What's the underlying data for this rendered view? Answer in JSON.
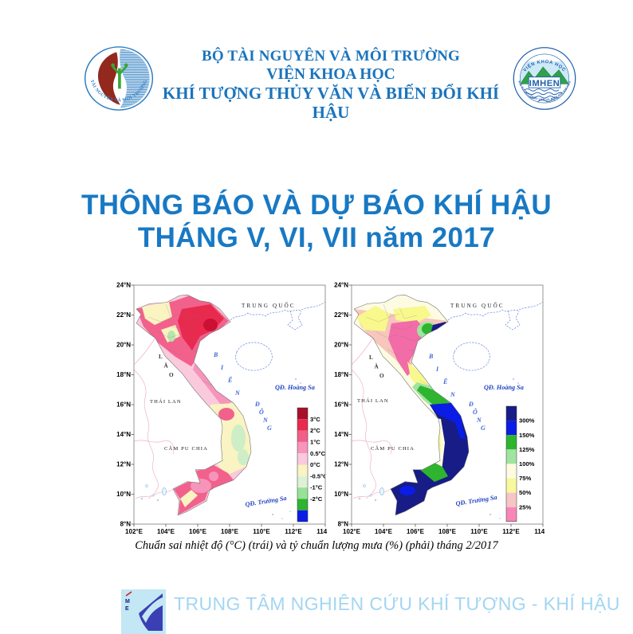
{
  "header": {
    "ministry": "BỘ TÀI NGUYÊN VÀ MÔI TRƯỜNG",
    "institute_line1": "VIỆN KHOA HỌC",
    "institute_line2": "KHÍ TƯỢNG THỦY VĂN VÀ BIẾN ĐỔI KHÍ HẬU",
    "left_logo_arc": "TÀI NGUYÊN VÀ MÔI TRƯỜNG",
    "right_logo": {
      "top_arc": "VIỆN KHOA HỌC",
      "center": "IMHEN",
      "bottom_arc": "KHÍ TƯỢNG THỦY VĂN VÀ BIẾN ĐỔI KHÍ HẬU"
    }
  },
  "title": {
    "line1": "THÔNG BÁO VÀ DỰ BÁO KHÍ HẬU",
    "line2": "THÁNG V, VI, VII năm 2017"
  },
  "figure": {
    "caption": "Chuẩn sai nhiệt độ (°C) (trái) và tỷ chuẩn lượng mưa (%) (phải) tháng 2/2017",
    "lat_ticks": [
      "24°N",
      "22°N",
      "20°N",
      "18°N",
      "16°N",
      "14°N",
      "12°N",
      "10°N",
      "8°N"
    ],
    "lon_ticks": [
      "102°E",
      "104°E",
      "106°E",
      "108°E",
      "110°E",
      "112°E",
      "114°E"
    ],
    "place_labels": {
      "china": "TRUNG QUỐC",
      "laos": "LÀO",
      "thailand": "THÁI LAN",
      "cambodia": "CĂM PU CHIA",
      "sea_word1": "BIỂN",
      "sea_word2": "ĐÔNG",
      "hoang_sa": "QĐ. Hoàng Sa",
      "truong_sa": "QĐ. Trường Sa"
    },
    "legend_temperature": {
      "labels": [
        "3°C",
        "2°C",
        "1°C",
        "0.5°C",
        "0°C",
        "-0.5°C",
        "-1°C",
        "-2°C"
      ],
      "colors": [
        "#a8102a",
        "#e82a4e",
        "#f25f88",
        "#f795bc",
        "#fbc9dc",
        "#faf3c2",
        "#def1d8",
        "#97e297",
        "#2eb42e",
        "#0b1ce6"
      ]
    },
    "legend_rainfall": {
      "labels": [
        "300%",
        "150%",
        "125%",
        "100%",
        "75%",
        "50%",
        "25%"
      ],
      "colors": [
        "#171c86",
        "#0b1ce6",
        "#2eb42e",
        "#9fe49f",
        "#fdfbe2",
        "#f9f89e",
        "#f8c5c5",
        "#f887b8"
      ]
    }
  },
  "footer": {
    "org": "TRUNG TÂM NGHIÊN CỨU KHÍ TƯỢNG - KHÍ HẬU",
    "logo_letters": [
      "M",
      "E"
    ]
  },
  "colors": {
    "header_blue": "#1a74bc",
    "title_blue": "#1879c4",
    "footer_blue": "#a3d6f2",
    "logo_red": "#93281c",
    "logo_green": "#3aa53a"
  }
}
